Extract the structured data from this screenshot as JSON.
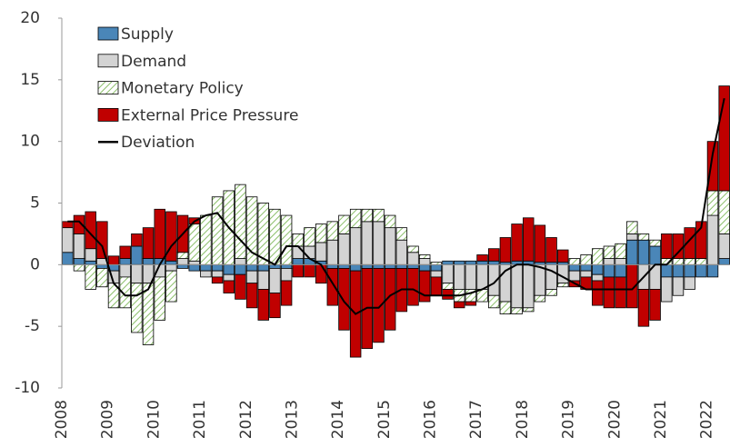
{
  "chart_data": {
    "type": "bar",
    "categories": [
      "2008",
      null,
      null,
      null,
      "2009",
      null,
      null,
      null,
      "2010",
      null,
      null,
      null,
      "2011",
      null,
      null,
      null,
      "2012",
      null,
      null,
      null,
      "2013",
      null,
      null,
      null,
      "2014",
      null,
      null,
      null,
      "2015",
      null,
      null,
      null,
      "2016",
      null,
      null,
      null,
      "2017",
      null,
      null,
      null,
      "2018",
      null,
      null,
      null,
      "2019",
      null,
      null,
      null,
      "2020",
      null,
      null,
      null,
      "2021",
      null,
      null,
      null,
      "2022",
      null
    ],
    "series": [
      {
        "name": "Supply",
        "color": "#4a86b8",
        "values": [
          1,
          0.5,
          0.3,
          -0.3,
          -0.5,
          0.5,
          1.5,
          0.5,
          0.5,
          0.3,
          -0.3,
          -0.5,
          -0.5,
          -0.5,
          -0.8,
          -0.8,
          -0.5,
          -0.5,
          -0.3,
          -0.3,
          0.5,
          0.5,
          0.3,
          -0.3,
          -0.3,
          -0.5,
          -0.3,
          -0.3,
          -0.3,
          -0.3,
          -0.3,
          -0.5,
          -0.5,
          0.3,
          0.3,
          0.3,
          0.3,
          0.3,
          0.2,
          0.3,
          0.3,
          0.2,
          0.2,
          0.2,
          -0.5,
          -0.5,
          -0.8,
          -1,
          -1,
          2,
          2,
          1.5,
          -1,
          -1,
          -1,
          -1,
          -1,
          0.5
        ]
      },
      {
        "name": "Demand",
        "color": "#d3d3d3",
        "values": [
          2,
          2,
          1,
          0.5,
          -1,
          -1,
          -1.5,
          -1.5,
          -1,
          -0.5,
          0.5,
          0.3,
          -0.5,
          -0.5,
          -0.5,
          0.5,
          -1,
          -1.5,
          -2,
          -1,
          1,
          1,
          1.5,
          2,
          2.5,
          3,
          3.5,
          3.5,
          3,
          2,
          1,
          0.5,
          -0.5,
          -1.5,
          -2,
          -2,
          -2,
          -2.5,
          -3,
          -3.5,
          -3.5,
          -2.5,
          -2,
          -1.5,
          -0.8,
          -0.5,
          -0.5,
          0.5,
          0.5,
          0.5,
          -2,
          -2,
          -2,
          -1.5,
          -1,
          0,
          4,
          2
        ]
      },
      {
        "name": "Monetary Policy",
        "color": "#8bbf6a",
        "values": [
          0,
          -0.5,
          -2,
          -1.5,
          -2,
          -2.5,
          -4,
          -5,
          -3.5,
          -2.5,
          0.5,
          3,
          4,
          5.5,
          6,
          6,
          5.5,
          5,
          4.5,
          4,
          1,
          1.5,
          1.5,
          1.5,
          1.5,
          1.5,
          1,
          1,
          1,
          1,
          0.5,
          0.3,
          0.2,
          -0.5,
          -1,
          -1,
          -1,
          -1,
          -1,
          -0.5,
          -0.3,
          -0.5,
          -0.5,
          -0.3,
          0.5,
          0.8,
          1.3,
          1,
          1.2,
          1,
          0.5,
          0.5,
          0.5,
          0.5,
          0.5,
          0.5,
          2,
          3.5
        ]
      },
      {
        "name": "External Price Pressure",
        "color": "#c00000",
        "values": [
          0.5,
          1.5,
          3,
          3,
          0.7,
          1,
          1,
          2.5,
          4,
          4,
          3,
          0.5,
          0,
          -0.5,
          -1,
          -2,
          -2,
          -2.5,
          -2,
          -2,
          -1,
          -1,
          -1.5,
          -3,
          -5,
          -7,
          -6.5,
          -6,
          -5,
          -3.5,
          -3,
          -2.5,
          -1.5,
          -0.8,
          -0.5,
          -0.3,
          0.5,
          1,
          2,
          3,
          3.5,
          3,
          2,
          1,
          -0.5,
          -1,
          -2,
          -2.5,
          -2.5,
          -3.5,
          -3,
          -2.5,
          2,
          2,
          2.5,
          3,
          4,
          8.5
        ]
      },
      {
        "name": "Deviation",
        "type": "line",
        "color": "#000000",
        "values": [
          3.5,
          3.5,
          2.5,
          1.5,
          -1.5,
          -2.5,
          -2.5,
          -2,
          0,
          1.5,
          2.5,
          3.5,
          4,
          4.2,
          3,
          2,
          1,
          0.5,
          0,
          1.5,
          1.5,
          0.5,
          0,
          -1.5,
          -3,
          -4,
          -3.5,
          -3.5,
          -2.5,
          -2,
          -2,
          -2.5,
          -2.5,
          -2.5,
          -2.5,
          -2.3,
          -2,
          -1.5,
          -0.5,
          0,
          0,
          -0.2,
          -0.5,
          -1,
          -1.5,
          -2,
          -2,
          -2,
          -2,
          -2,
          -1,
          0,
          0,
          1,
          2,
          3,
          9,
          13.5
        ]
      }
    ],
    "ylim": [
      -10,
      20
    ],
    "yticks": [
      -10,
      -5,
      0,
      5,
      10,
      15,
      20
    ],
    "legend": "upper-left"
  }
}
